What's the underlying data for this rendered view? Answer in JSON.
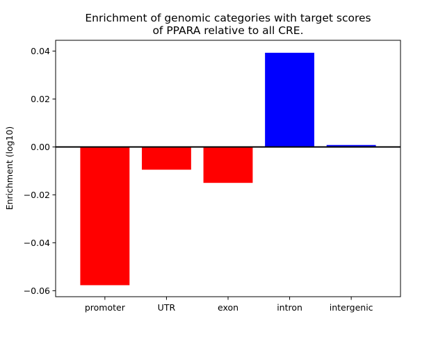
{
  "chart_data": {
    "type": "bar",
    "title_lines": [
      "Enrichment of genomic categories with target scores",
      "of PPARA relative to all CRE."
    ],
    "xlabel": "",
    "ylabel": "Enrichment (log10)",
    "categories": [
      "promoter",
      "UTR",
      "exon",
      "intron",
      "intergenic"
    ],
    "values": [
      -0.0577,
      -0.0095,
      -0.015,
      0.0393,
      0.0008
    ],
    "ylim": [
      -0.0625,
      0.0445
    ],
    "yticks": [
      -0.06,
      -0.04,
      -0.02,
      0.0,
      0.02,
      0.04
    ],
    "ytick_labels": [
      "−0.06",
      "−0.04",
      "−0.02",
      "0.00",
      "0.02",
      "0.04"
    ],
    "grid": false,
    "zero_line": true,
    "colors": {
      "positive": "#0000ff",
      "negative": "#ff0000",
      "axis": "#000000"
    }
  }
}
